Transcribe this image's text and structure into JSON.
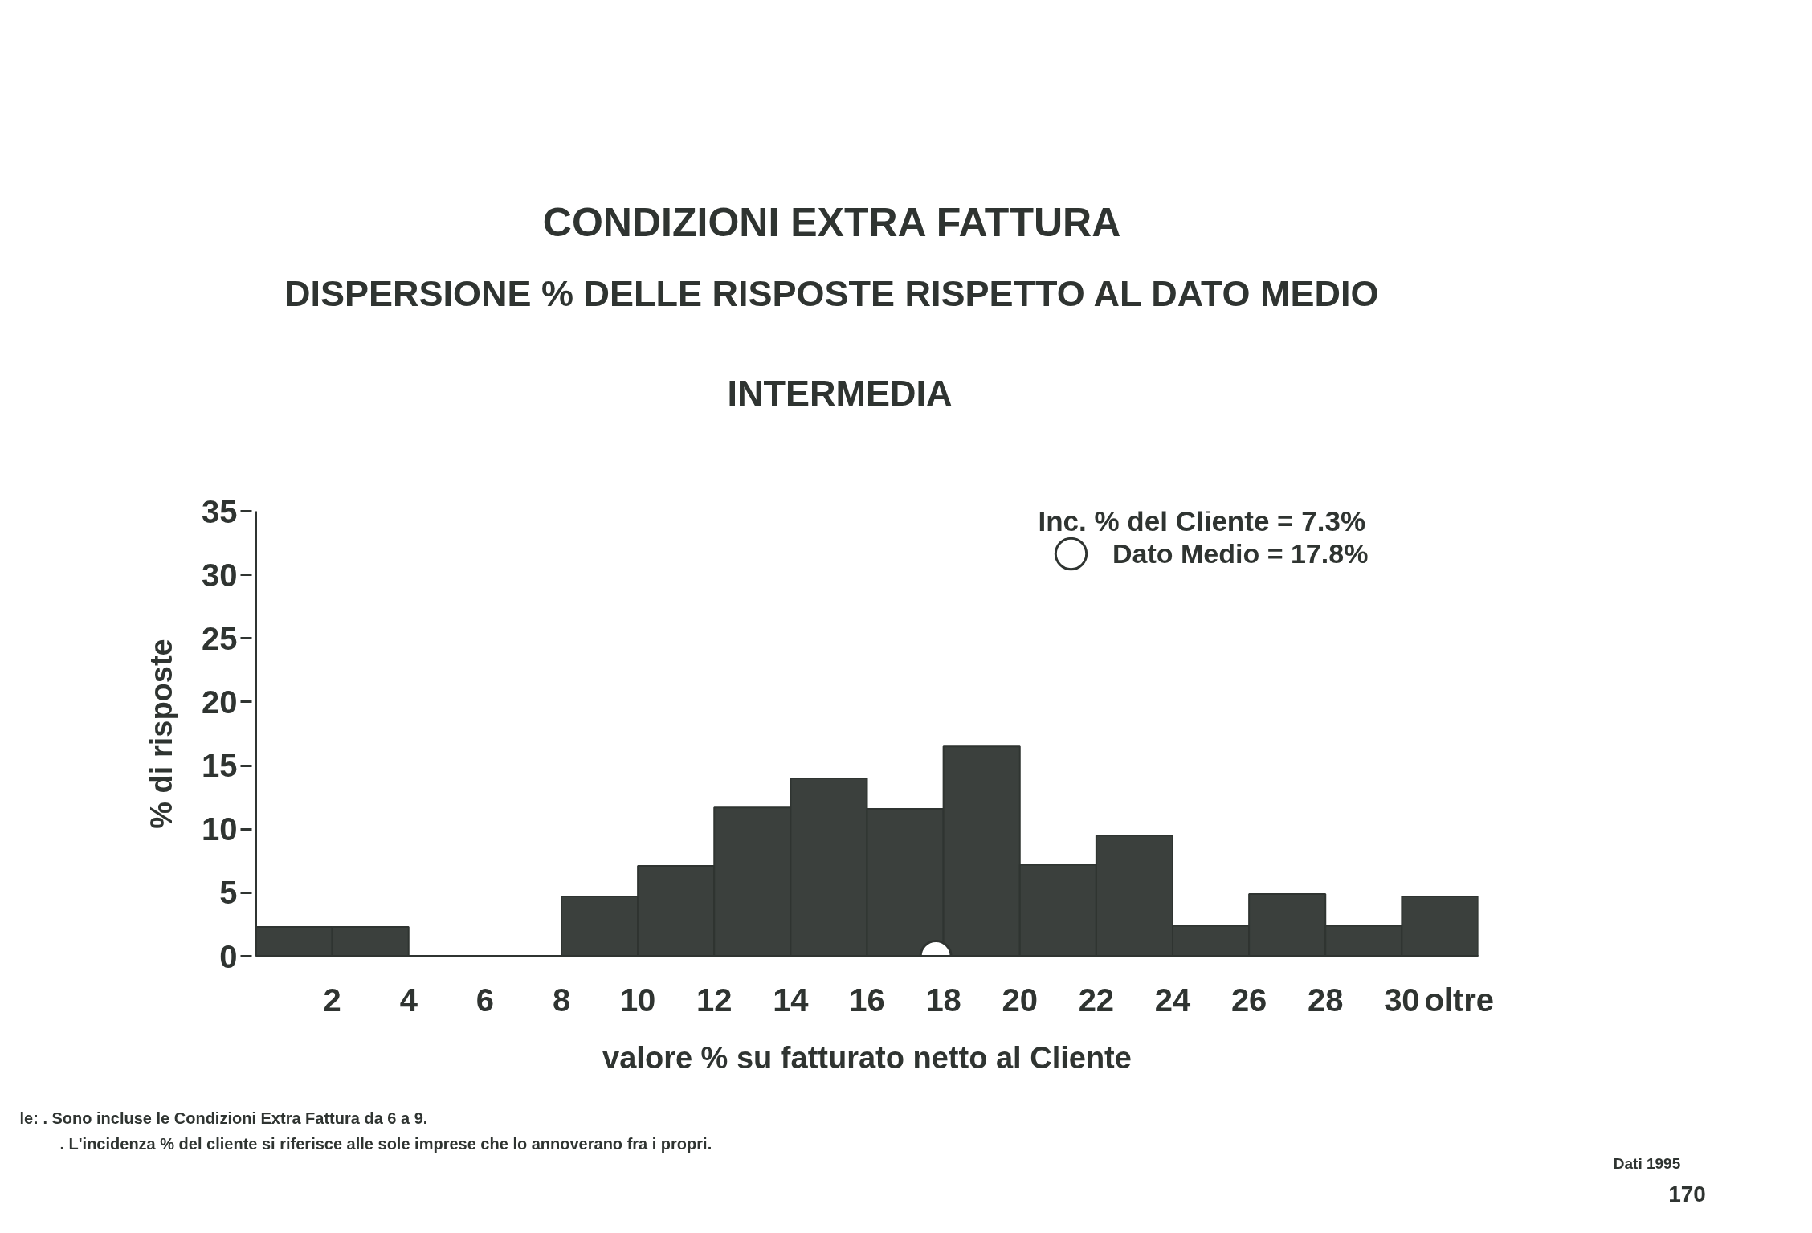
{
  "chart_data": {
    "type": "histogram",
    "title": "CONDIZIONI EXTRA FATTURA",
    "subtitle": "DISPERSIONE % DELLE RISPOSTE RISPETTO AL DATO MEDIO",
    "xlabel": "valore % su fatturato netto al Cliente",
    "ylabel": "% di risposte",
    "annotations": [
      "INTERMEDIA",
      "Inc. % del Cliente = 7.3%",
      "le: . Sono incluse le Condizioni Extra Fattura da 6 a 9.",
      ". L'incidenza % del cliente si riferisce alle sole imprese che lo annoverano fra i propri.",
      "Dati 1995",
      "170"
    ],
    "bins": [
      0,
      2,
      4,
      6,
      8,
      10,
      12,
      14,
      16,
      18,
      20,
      22,
      24,
      26,
      28,
      30,
      32
    ],
    "series": [
      {
        "color": "#3b403d",
        "values": [
          2.3,
          2.3,
          0,
          0,
          4.7,
          7.1,
          11.7,
          14.0,
          11.6,
          16.5,
          7.2,
          9.5,
          2.4,
          4.9,
          2.4,
          4.7
        ]
      },
      {
        "type": "scatter",
        "name": "Dato Medio = 17.8%",
        "x": [
          17.8
        ],
        "values": [
          0
        ],
        "color": "#2f3431",
        "marker": "circle"
      }
    ],
    "xlim": [
      0,
      32
    ],
    "ylim": [
      0,
      35
    ],
    "xticks": [
      2,
      4,
      6,
      8,
      10,
      12,
      14,
      16,
      18,
      20,
      22,
      24,
      26,
      28,
      30,
      {
        "value": 31.5,
        "label": "oltre"
      }
    ],
    "yticks": [
      0,
      5,
      10,
      15,
      20,
      25,
      30,
      35
    ],
    "legend": "top right"
  }
}
